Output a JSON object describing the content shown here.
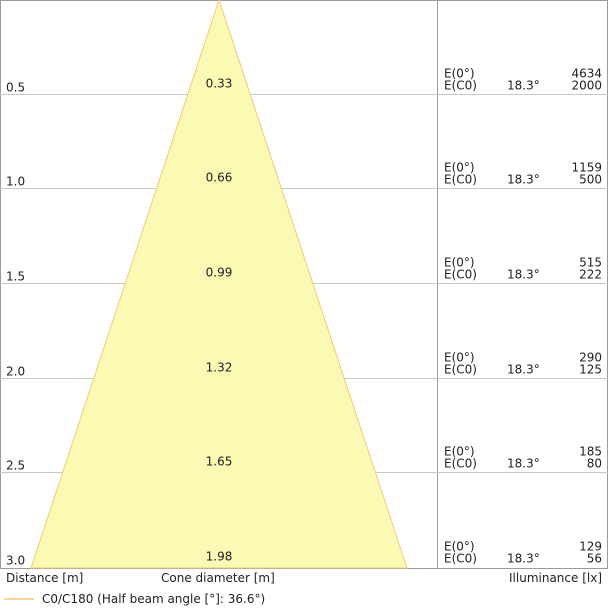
{
  "chart_data": {
    "type": "cone-diagram",
    "rows": [
      {
        "distance": "0.5",
        "diameter": "0.33",
        "e0": "4634",
        "ec0": "2000"
      },
      {
        "distance": "1.0",
        "diameter": "0.66",
        "e0": "1159",
        "ec0": "500"
      },
      {
        "distance": "1.5",
        "diameter": "0.99",
        "e0": "515",
        "ec0": "222"
      },
      {
        "distance": "2.0",
        "diameter": "1.32",
        "e0": "290",
        "ec0": "125"
      },
      {
        "distance": "2.5",
        "diameter": "1.65",
        "e0": "185",
        "ec0": "80"
      },
      {
        "distance": "3.0",
        "diameter": "1.98",
        "e0": "129",
        "ec0": "56"
      }
    ],
    "row_labels": {
      "e0": "E(0°)",
      "ec0": "E(C0)",
      "angle": "18.3°"
    },
    "max_distance": 3.0,
    "max_diameter": 1.98,
    "colors": {
      "cone_fill": "#fafab4",
      "cone_stroke": "#f5c87a",
      "grid": "#c8c8c8",
      "frame": "#9a9a9a",
      "legend_line": "#f5c87a"
    }
  },
  "footer": {
    "distance_label": "Distance [m]",
    "diameter_label": "Cone diameter [m]",
    "illuminance_label": "Illuminance [lx]"
  },
  "legend": {
    "label": "C0/C180 (Half beam angle [°]: 36.6°)"
  }
}
